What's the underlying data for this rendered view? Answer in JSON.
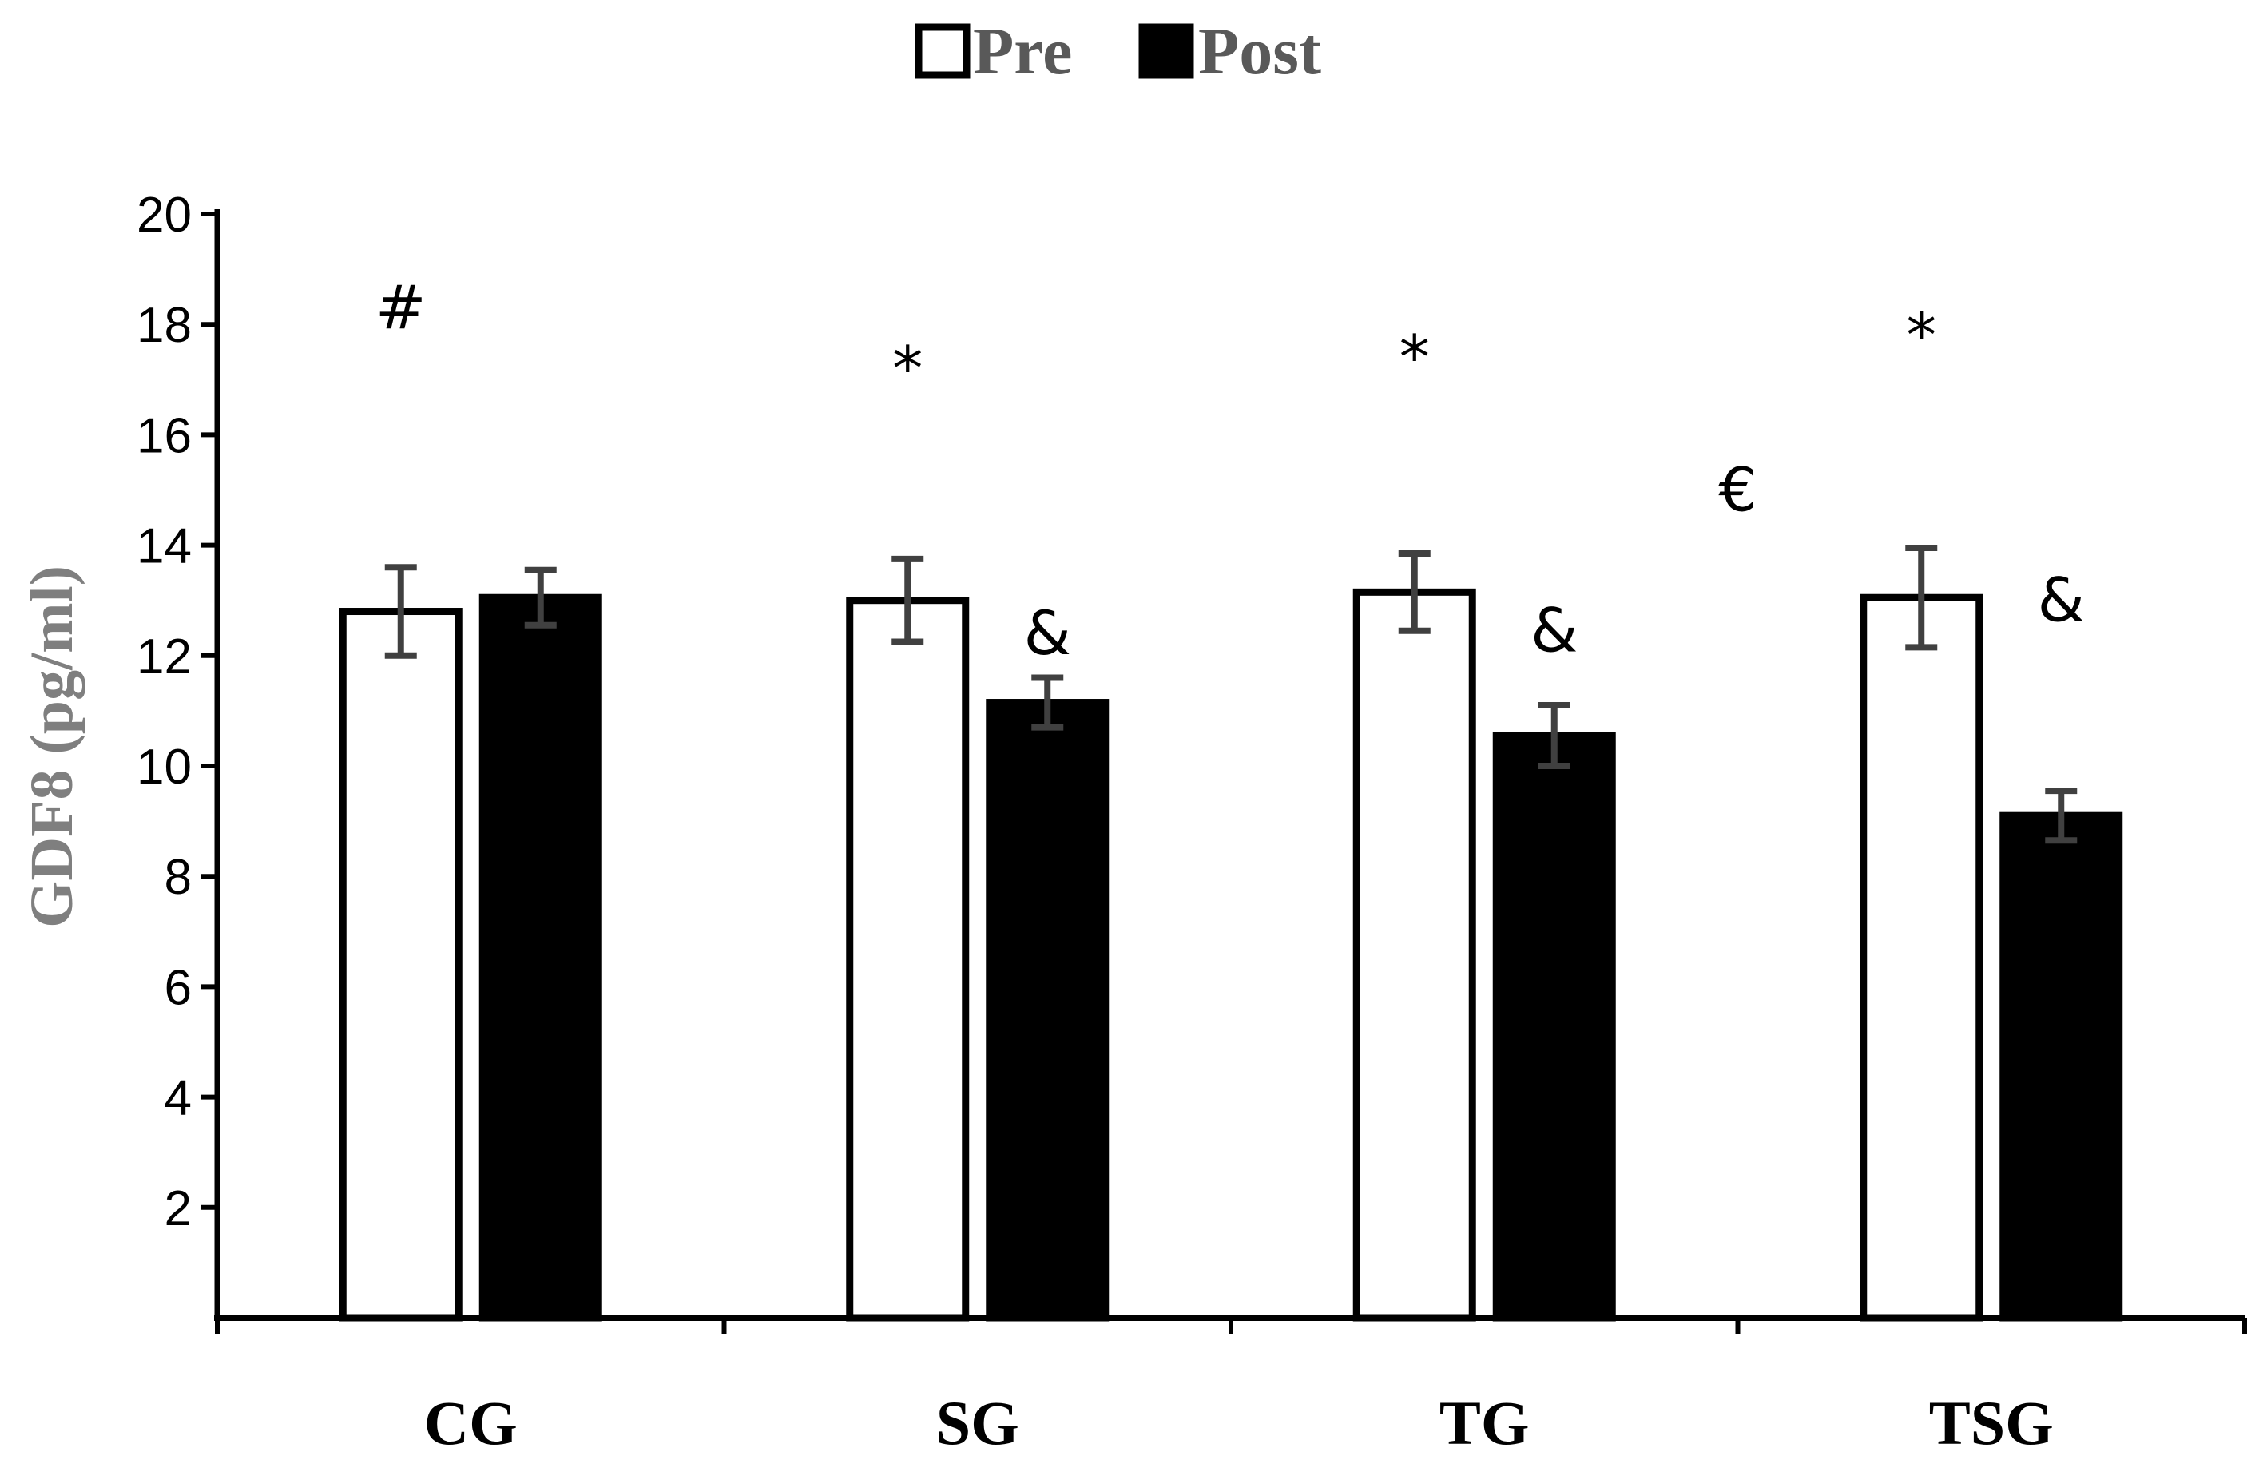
{
  "chart_data": {
    "type": "bar",
    "title": "",
    "xlabel": "",
    "ylabel": "GDF8 (pg/ml)",
    "ylim": [
      0,
      20
    ],
    "yticks": [
      2,
      4,
      6,
      8,
      10,
      12,
      14,
      16,
      18,
      20
    ],
    "categories": [
      "CG",
      "SG",
      "TG",
      "TSG"
    ],
    "series": [
      {
        "name": "Pre",
        "values": [
          12.8,
          13.0,
          13.15,
          13.05
        ],
        "errors": [
          0.8,
          0.75,
          0.7,
          0.9
        ],
        "fill": "#ffffff"
      },
      {
        "name": "Post",
        "values": [
          13.05,
          11.15,
          10.55,
          9.1
        ],
        "errors": [
          0.5,
          0.45,
          0.55,
          0.45
        ],
        "fill": "#000000"
      }
    ],
    "legend_position": "top-center",
    "annotations": [
      {
        "text": "#",
        "category": 0,
        "at": "pre",
        "y": 18.3
      },
      {
        "text": "*",
        "category": 1,
        "at": "pre",
        "y": 17.2
      },
      {
        "text": "&",
        "category": 1,
        "at": "post",
        "y": 12.4
      },
      {
        "text": "*",
        "category": 2,
        "at": "pre",
        "y": 17.4
      },
      {
        "text": "&",
        "category": 2,
        "at": "post",
        "y": 12.45
      },
      {
        "text": "€",
        "category": 2,
        "at": "between",
        "y": 15.0
      },
      {
        "text": "*",
        "category": 3,
        "at": "pre",
        "y": 17.8
      },
      {
        "text": "&",
        "category": 3,
        "at": "post",
        "y": 13.0
      }
    ]
  }
}
